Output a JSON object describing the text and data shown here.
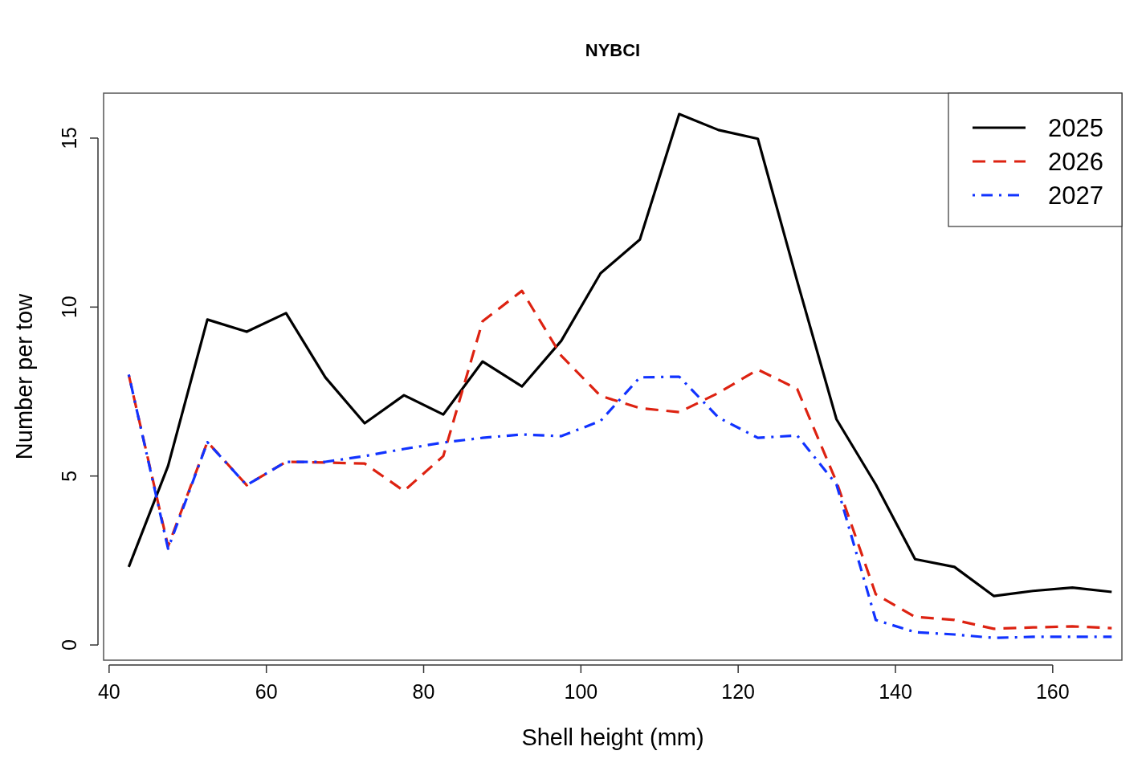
{
  "chart_data": {
    "type": "line",
    "title": "NYBCI",
    "xlabel": "Shell height (mm)",
    "ylabel": "Number per tow",
    "x": [
      42.5,
      47.5,
      52.5,
      57.5,
      62.5,
      67.5,
      72.5,
      77.5,
      82.5,
      87.5,
      92.5,
      97.5,
      102.5,
      107.5,
      112.5,
      117.5,
      122.5,
      127.5,
      132.5,
      137.5,
      142.5,
      147.5,
      152.5,
      157.5,
      162.5,
      167.5
    ],
    "series": [
      {
        "name": "2025",
        "color": "#000000",
        "line_style": "solid",
        "values": [
          2.31,
          5.3,
          9.63,
          9.27,
          9.82,
          7.92,
          6.56,
          7.39,
          6.82,
          8.39,
          7.65,
          9.0,
          11.0,
          12.0,
          15.71,
          15.24,
          14.98,
          10.77,
          6.68,
          4.75,
          2.54,
          2.31,
          1.45,
          1.6,
          1.7,
          1.57
        ]
      },
      {
        "name": "2026",
        "color": "#dd2211",
        "line_style": "dashed",
        "values": [
          7.99,
          2.92,
          6.01,
          4.73,
          5.42,
          5.4,
          5.37,
          4.56,
          5.59,
          9.58,
          10.48,
          8.56,
          7.37,
          7.01,
          6.89,
          7.46,
          8.15,
          7.58,
          4.83,
          1.5,
          0.83,
          0.74,
          0.48,
          0.52,
          0.55,
          0.5
        ]
      },
      {
        "name": "2027",
        "color": "#1133ff",
        "line_style": "dashdot",
        "values": [
          8.0,
          2.85,
          6.0,
          4.73,
          5.42,
          5.42,
          5.59,
          5.8,
          5.99,
          6.13,
          6.23,
          6.18,
          6.63,
          7.92,
          7.94,
          6.73,
          6.13,
          6.2,
          4.75,
          0.74,
          0.38,
          0.31,
          0.21,
          0.24,
          0.24,
          0.24
        ]
      }
    ],
    "xlim": [
      39.3,
      168.8
    ],
    "ylim": [
      -0.45,
      16.33
    ],
    "xticks": [
      40,
      60,
      80,
      100,
      120,
      140,
      160
    ],
    "yticks": [
      0,
      5,
      10,
      15
    ],
    "grid": false,
    "legend": "top right",
    "marker": "none"
  }
}
